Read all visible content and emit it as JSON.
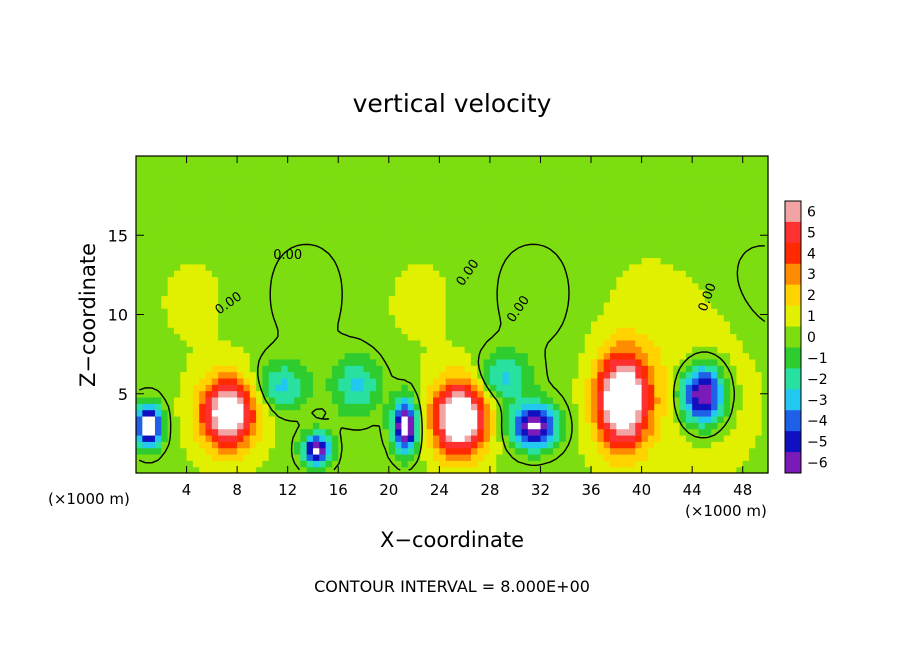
{
  "chart_data": {
    "type": "heatmap",
    "title": "vertical velocity",
    "xlabel": "X−coordinate",
    "ylabel": "Z−coordinate",
    "x_unit_left": "(×1000 m)",
    "x_unit_right": "(×1000 m)",
    "footer": "CONTOUR INTERVAL = 8.000E+00",
    "xlim": [
      0,
      50
    ],
    "ylim": [
      0,
      20
    ],
    "x_ticks": [
      4,
      8,
      12,
      16,
      20,
      24,
      28,
      32,
      36,
      40,
      44,
      48
    ],
    "y_ticks": [
      5,
      10,
      15
    ],
    "contour_labels": [
      "0.00",
      "0.00",
      "0.00",
      "0.00",
      "0.00"
    ],
    "colorbar": {
      "levels": [
        6,
        5,
        4,
        3,
        2,
        1,
        0,
        -1,
        -2,
        -3,
        -4,
        -5,
        -6
      ],
      "colors": [
        "#f2a3a3",
        "#ff3030",
        "#ff2a00",
        "#ff8c00",
        "#ffd200",
        "#e0f000",
        "#7cdd10",
        "#2ecc2e",
        "#28e0a0",
        "#22c8f0",
        "#1e60e8",
        "#1010c0",
        "#7a1ab8"
      ]
    },
    "background_value": 0.3,
    "features": [
      {
        "kind": "updraft",
        "x": 7.3,
        "z": 3.8,
        "peak": 8,
        "sx": 2.2,
        "sz": 2.2
      },
      {
        "kind": "updraft",
        "x": 25.6,
        "z": 3.5,
        "peak": 9,
        "sx": 2.1,
        "sz": 2.3
      },
      {
        "kind": "updraft",
        "x": 38.5,
        "z": 4.6,
        "peak": 9,
        "sx": 2.1,
        "sz": 3.0
      },
      {
        "kind": "updraft",
        "x": 44.5,
        "z": 5.5,
        "peak": 1.5,
        "sx": 4.0,
        "sz": 4.5
      },
      {
        "kind": "downdraft",
        "x": 1.0,
        "z": 3.0,
        "peak": -8,
        "sx": 1.0,
        "sz": 1.3
      },
      {
        "kind": "downdraft",
        "x": 14.3,
        "z": 1.5,
        "peak": -7,
        "sx": 1.1,
        "sz": 1.0
      },
      {
        "kind": "downdraft",
        "x": 21.3,
        "z": 3.0,
        "peak": -8,
        "sx": 1.0,
        "sz": 1.6
      },
      {
        "kind": "downdraft",
        "x": 31.5,
        "z": 3.0,
        "peak": -7,
        "sx": 1.8,
        "sz": 1.4
      },
      {
        "kind": "downdraft",
        "x": 44.8,
        "z": 5.0,
        "peak": -8,
        "sx": 1.8,
        "sz": 2.0
      },
      {
        "kind": "downdraft",
        "x": 11.5,
        "z": 5.5,
        "peak": -3,
        "sx": 2.0,
        "sz": 1.5
      },
      {
        "kind": "downdraft",
        "x": 17.5,
        "z": 5.5,
        "peak": -3,
        "sx": 1.8,
        "sz": 1.8
      },
      {
        "kind": "downdraft",
        "x": 29.0,
        "z": 6.0,
        "peak": -3,
        "sx": 2.0,
        "sz": 1.5
      }
    ]
  }
}
